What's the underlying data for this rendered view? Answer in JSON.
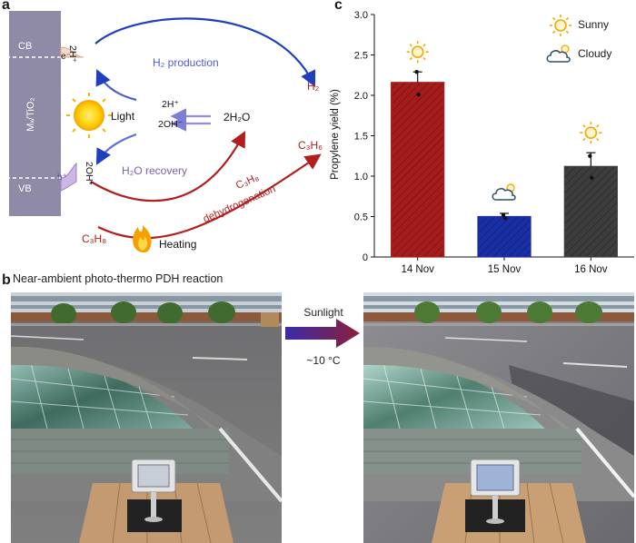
{
  "panels": {
    "a": {
      "letter": "a",
      "bar_label": "Mₓ/TiO₂",
      "cb": "CB",
      "vb": "VB",
      "electron": "e⁻",
      "hole": "h⁺",
      "h_plus_2": "2H⁺",
      "oh_2": "2OH*",
      "h2_production": "H₂ production",
      "h2": "H₂",
      "light": "Light",
      "mid_h": "2H⁺",
      "mid_oh": "2OH⁻",
      "water": "2H₂O",
      "h2o_recovery": "H₂O recovery",
      "c3h6": "C₃H₆",
      "c3h8_reactant": "C₃H₈",
      "c3h8_dehyd": "C₃H₈",
      "dehydrogenation": "dehydrogenation",
      "heating": "Heating",
      "colors": {
        "blue": "#1f3fbf",
        "red": "#b21e1e",
        "purple": "#7a5fb0",
        "bar": "#8f8aa6"
      }
    },
    "b": {
      "letter": "b",
      "caption": "Near-ambient photo-thermo PDH reaction",
      "arrow_label": "Sunlight",
      "temp_label": "~10 °C"
    },
    "c": {
      "letter": "c",
      "legend": {
        "sunny": "Sunny",
        "cloudy": "Cloudy"
      }
    }
  },
  "chart_data": {
    "type": "bar",
    "categories": [
      "14 Nov",
      "15 Nov",
      "16 Nov"
    ],
    "values": [
      2.16,
      0.5,
      1.12
    ],
    "errors": [
      0.13,
      0.04,
      0.17
    ],
    "points": [
      [
        2.29,
        2.01
      ],
      [
        0.52,
        0.48
      ],
      [
        1.25,
        0.98
      ]
    ],
    "weather": [
      "sunny",
      "cloudy",
      "sunny"
    ],
    "colors": [
      "#a61c1c",
      "#1a2fa6",
      "#3d3d3d"
    ],
    "ylabel": "Propylene yield (%)",
    "xlabel": "",
    "ylim": [
      0,
      3.0
    ],
    "yticks": [
      "0",
      "0.5",
      "1.0",
      "1.5",
      "2.0",
      "2.5",
      "3.0"
    ],
    "legend_position": "top-right"
  }
}
